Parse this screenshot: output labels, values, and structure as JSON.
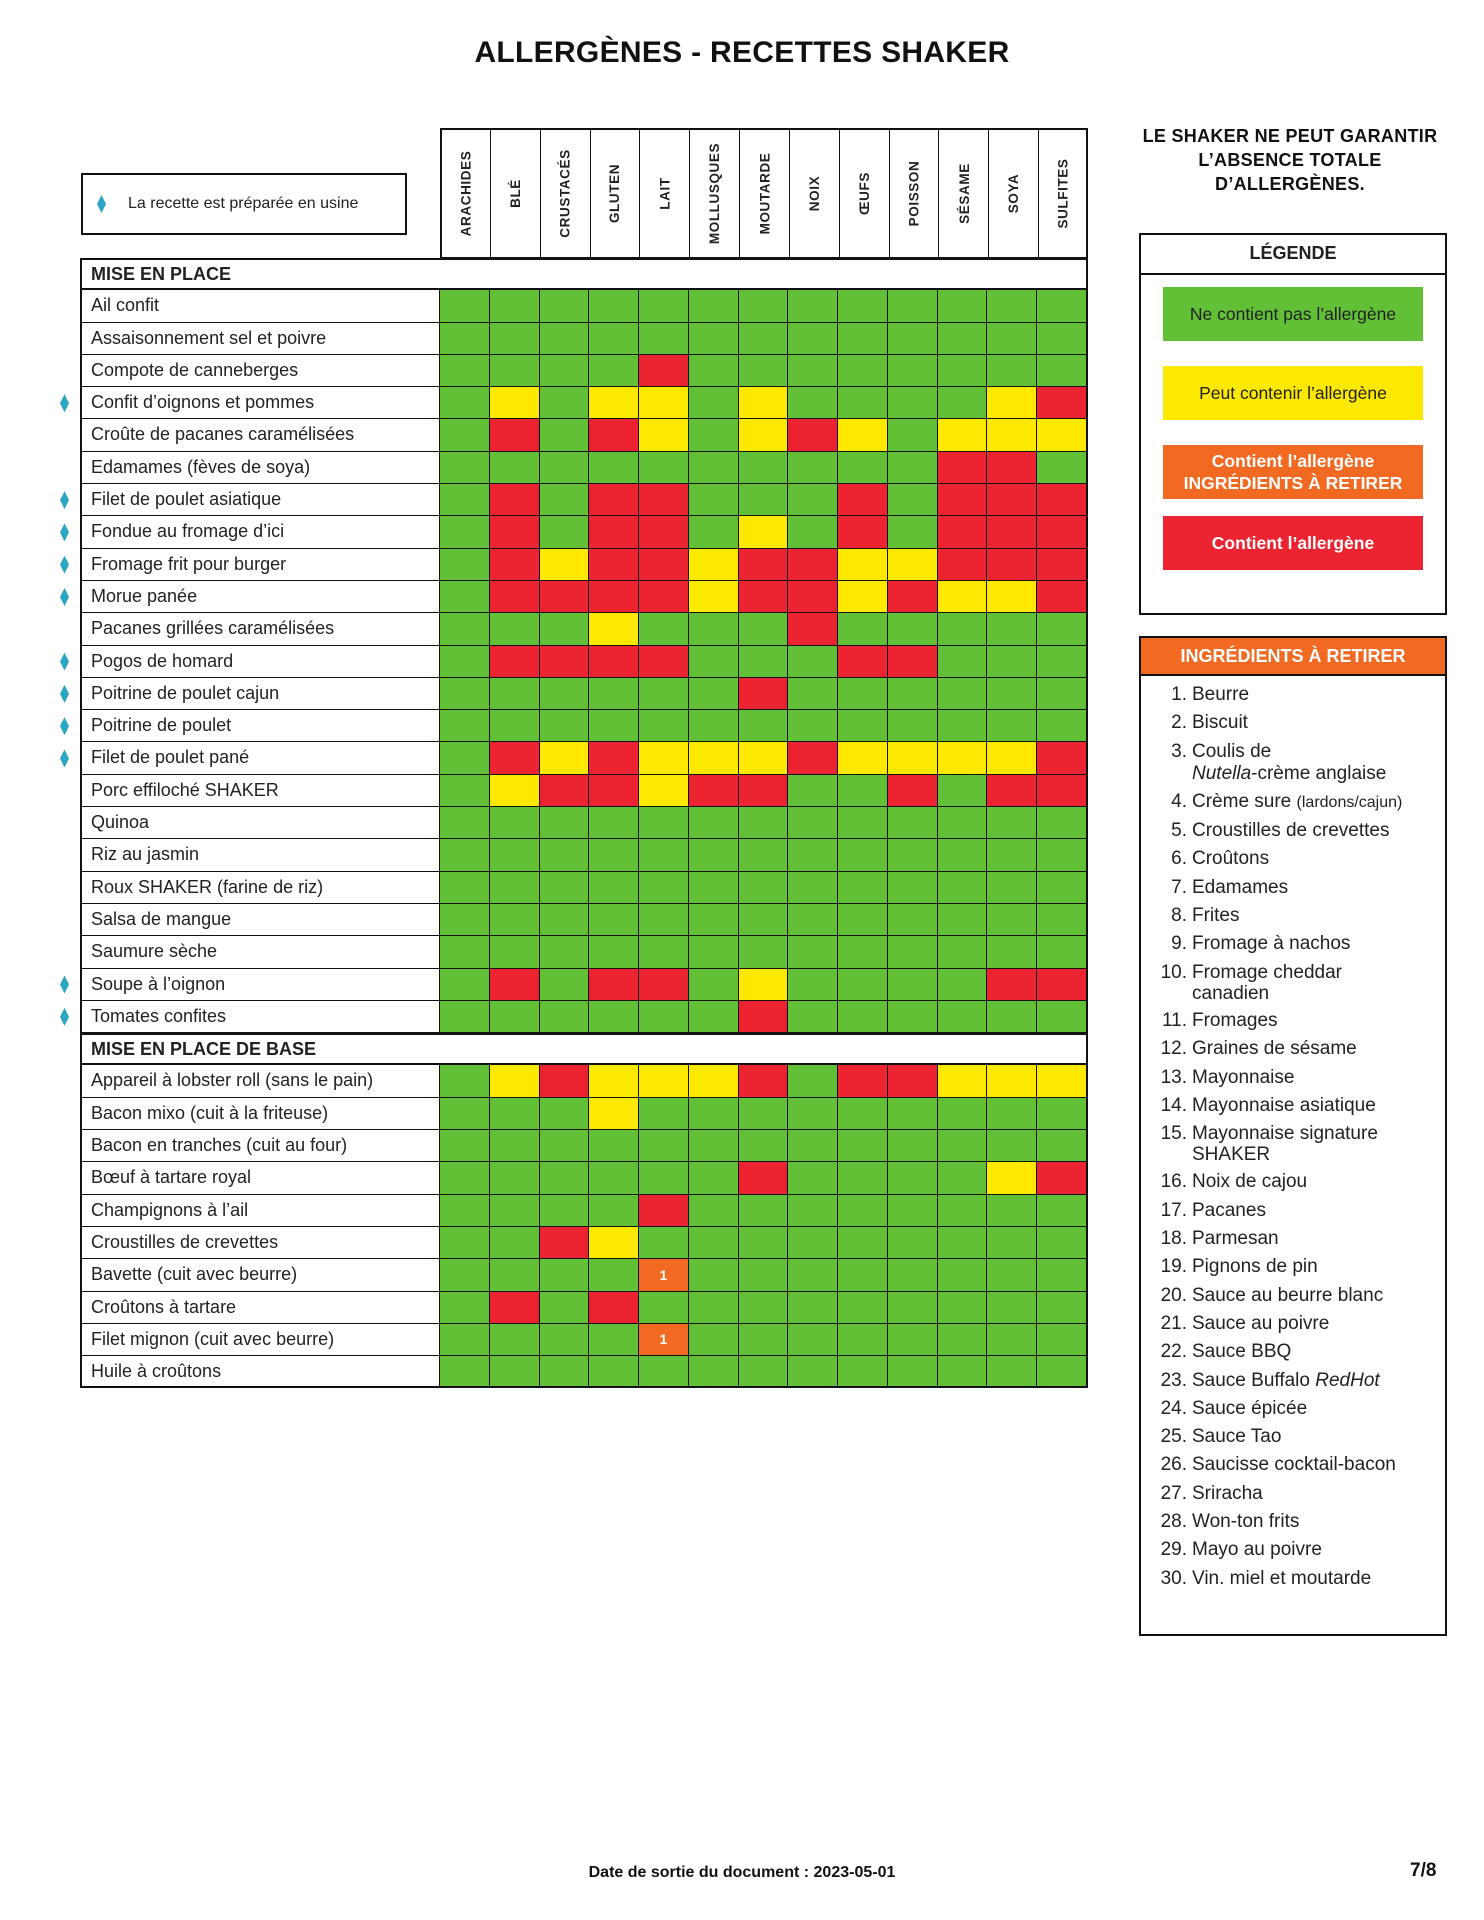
{
  "title": "ALLERGÈNES - RECETTES SHAKER",
  "factory_note": "La recette est préparée en usine",
  "columns": [
    "ARACHIDES",
    "BLÉ",
    "CRUSTACÉS",
    "GLUTEN",
    "LAIT",
    "MOLLUSQUES",
    "MOUTARDE",
    "NOIX",
    "ŒUFS",
    "POISSON",
    "SÉSAME",
    "SOYA",
    "SULFITES"
  ],
  "colors": {
    "green": "#62c037",
    "yellow": "#fde800",
    "orange": "#f26a22",
    "red": "#ec2330",
    "factory_marker": "#2aa6c4"
  },
  "sections": [
    {
      "title": "MISE EN PLACE",
      "rows": [
        {
          "name": "Ail confit",
          "factory": false,
          "cells": "GGGGGGGGGGGGG"
        },
        {
          "name": "Assaisonnement sel et poivre",
          "factory": false,
          "cells": "GGGGGGGGGGGGG"
        },
        {
          "name": "Compote de canneberges",
          "factory": false,
          "cells": "GGGGRGGGGGGGG"
        },
        {
          "name": "Confit d’oignons et pommes",
          "factory": true,
          "cells": "GYGYYGYGGGGYR"
        },
        {
          "name": "Croûte de pacanes caramélisées",
          "factory": false,
          "cells": "GRGRYGYRYGYYY"
        },
        {
          "name": "Edamames (fèves de soya)",
          "factory": false,
          "cells": "GGGGGGGGGGRRG"
        },
        {
          "name": "Filet de poulet asiatique",
          "factory": true,
          "cells": "GRGRRGGGRGRRR"
        },
        {
          "name": "Fondue au fromage d’ici",
          "factory": true,
          "cells": "GRGRRGYGRGRRR"
        },
        {
          "name": "Fromage frit pour burger",
          "factory": true,
          "cells": "GRYRRYRRYYRRR"
        },
        {
          "name": "Morue panée",
          "factory": true,
          "cells": "GRRRRYRRYRYYR"
        },
        {
          "name": "Pacanes grillées caramélisées",
          "factory": false,
          "cells": "GGGYGGGRGGGGG"
        },
        {
          "name": "Pogos de homard",
          "factory": true,
          "cells": "GRRRRGGGRRGGG"
        },
        {
          "name": "Poitrine de poulet cajun",
          "factory": true,
          "cells": "GGGGGGRGGGGGG"
        },
        {
          "name": "Poitrine de poulet",
          "factory": true,
          "cells": "GGGGGGGGGGGGG"
        },
        {
          "name": "Filet de poulet pané",
          "factory": true,
          "cells": "GRYRYYYRYYYYR"
        },
        {
          "name": "Porc effiloché SHAKER",
          "factory": false,
          "cells": "GYRRYRRGGRGRR"
        },
        {
          "name": "Quinoa",
          "factory": false,
          "cells": "GGGGGGGGGGGGG"
        },
        {
          "name": "Riz au jasmin",
          "factory": false,
          "cells": "GGGGGGGGGGGGG"
        },
        {
          "name": "Roux SHAKER (farine de riz)",
          "factory": false,
          "cells": "GGGGGGGGGGGGG"
        },
        {
          "name": "Salsa de mangue",
          "factory": false,
          "cells": "GGGGGGGGGGGGG"
        },
        {
          "name": "Saumure sèche",
          "factory": false,
          "cells": "GGGGGGGGGGGGG"
        },
        {
          "name": "Soupe à l’oignon",
          "factory": true,
          "cells": "GRGRRGYGGGGRR"
        },
        {
          "name": "Tomates confites",
          "factory": true,
          "cells": "GGGGGGRGGGGGG"
        }
      ]
    },
    {
      "title": "MISE EN PLACE DE BASE",
      "rows": [
        {
          "name": "Appareil à lobster roll (sans le pain)",
          "factory": false,
          "cells": "GYRYYYRGRRYYY"
        },
        {
          "name": "Bacon mixo (cuit à la friteuse)",
          "factory": false,
          "cells": "GGGYGGGGGGGGG"
        },
        {
          "name": "Bacon en tranches (cuit au four)",
          "factory": false,
          "cells": "GGGGGGGGGGGGG"
        },
        {
          "name": "Bœuf à tartare royal",
          "factory": false,
          "cells": "GGGGGGRGGGGYR"
        },
        {
          "name": "Champignons à l’ail",
          "factory": false,
          "cells": "GGGGRGGGGGGGG"
        },
        {
          "name": "Croustilles de crevettes",
          "factory": false,
          "cells": "GGRYGGGGGGGGG"
        },
        {
          "name": "Bavette (cuit avec beurre)",
          "factory": false,
          "cells": "GGGGOGGGGGGGG",
          "remove_note": "1"
        },
        {
          "name": "Croûtons à tartare",
          "factory": false,
          "cells": "GRGRGGGGGGGGG"
        },
        {
          "name": "Filet mignon (cuit avec beurre)",
          "factory": false,
          "cells": "GGGGOGGGGGGGG",
          "remove_note": "1"
        },
        {
          "name": "Huile à croûtons",
          "factory": false,
          "cells": "GGGGGGGGGGGGG"
        }
      ]
    }
  ],
  "warning": "LE SHAKER NE PEUT GARANTIR L’ABSENCE TOTALE D’ALLERGÈNES.",
  "legend": {
    "title": "LÉGENDE",
    "items": [
      {
        "label": "Ne contient pas l’allergène",
        "color": "#62c037",
        "text_color": "#222"
      },
      {
        "label": "Peut contenir l’allergène",
        "color": "#fde800",
        "text_color": "#222"
      },
      {
        "label": "Contient l’allergène",
        "label2": "INGRÉDIENTS À RETIRER",
        "color": "#f26a22",
        "text_color": "#fff"
      },
      {
        "label": "Contient l’allergène",
        "color": "#ec2330",
        "text_color": "#fff"
      }
    ]
  },
  "ingredients": {
    "title": "INGRÉDIENTS À RETIRER",
    "items": [
      {
        "num": "1.",
        "text": "Beurre"
      },
      {
        "num": "2.",
        "text": "Biscuit"
      },
      {
        "num": "3.",
        "text": "Coulis de",
        "line2_italic": "Nutella",
        "line2_rest": "-crème anglaise"
      },
      {
        "num": "4.",
        "text": "Crème sure",
        "small": "(lardons/cajun)"
      },
      {
        "num": "5.",
        "text": "Croustilles de crevettes"
      },
      {
        "num": "6.",
        "text": "Croûtons"
      },
      {
        "num": "7.",
        "text": "Edamames"
      },
      {
        "num": "8.",
        "text": "Frites"
      },
      {
        "num": "9.",
        "text": "Fromage à nachos"
      },
      {
        "num": "10.",
        "text": "Fromage cheddar",
        "line2": "canadien"
      },
      {
        "num": "11.",
        "text": "Fromages"
      },
      {
        "num": "12.",
        "text": "Graines de sésame"
      },
      {
        "num": "13.",
        "text": "Mayonnaise"
      },
      {
        "num": "14.",
        "text": "Mayonnaise asiatique"
      },
      {
        "num": "15.",
        "text": "Mayonnaise signature",
        "line2": "SHAKER"
      },
      {
        "num": "16.",
        "text": "Noix de cajou"
      },
      {
        "num": "17.",
        "text": "Pacanes"
      },
      {
        "num": "18.",
        "text": "Parmesan"
      },
      {
        "num": "19.",
        "text": "Pignons de pin"
      },
      {
        "num": "20.",
        "text": "Sauce au beurre blanc"
      },
      {
        "num": "21.",
        "text": "Sauce au poivre"
      },
      {
        "num": "22.",
        "text": "Sauce BBQ"
      },
      {
        "num": "23.",
        "text": "Sauce Buffalo",
        "italic_tail": "RedHot"
      },
      {
        "num": "24.",
        "text": "Sauce épicée"
      },
      {
        "num": "25.",
        "text": "Sauce Tao"
      },
      {
        "num": "26.",
        "text": "Saucisse cocktail-bacon"
      },
      {
        "num": "27.",
        "text": "Sriracha"
      },
      {
        "num": "28.",
        "text": "Won-ton frits"
      },
      {
        "num": "29.",
        "text": "Mayo au poivre"
      },
      {
        "num": "30.",
        "text": "Vin. miel et moutarde"
      }
    ]
  },
  "footer": {
    "date_label": "Date de sortie du document : 2023-05-01",
    "page": "7/8"
  }
}
